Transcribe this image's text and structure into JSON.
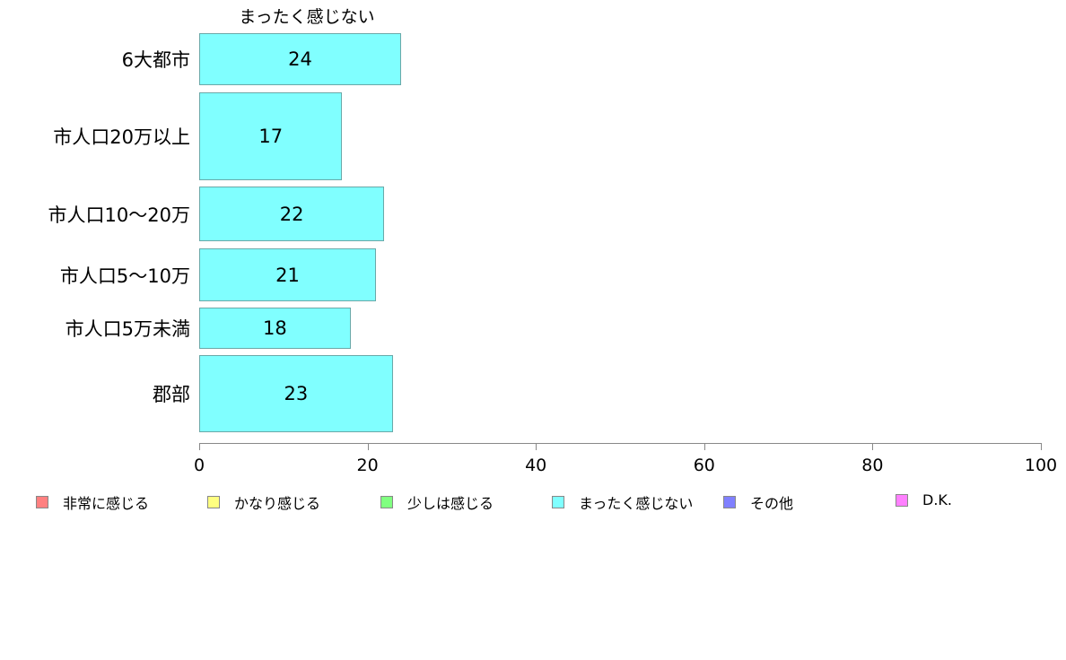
{
  "chart_data": {
    "type": "bar",
    "orientation": "horizontal",
    "title": "まったく感じない",
    "categories": [
      "6大都市",
      "市人口20万以上",
      "市人口10〜20万",
      "市人口5〜10万",
      "市人口5万未満",
      "郡部"
    ],
    "values": [
      24,
      17,
      22,
      21,
      18,
      23
    ],
    "xlim": [
      0,
      100
    ],
    "xticks": [
      0,
      20,
      40,
      60,
      80,
      100
    ],
    "xlabel": "",
    "ylabel": "",
    "bar_color": "#80ffff",
    "legend_position": "bottom",
    "legend": [
      {
        "label": "非常に感じる",
        "color": "#ff8080"
      },
      {
        "label": "かなり感じる",
        "color": "#ffff80"
      },
      {
        "label": "少しは感じる",
        "color": "#80ff80"
      },
      {
        "label": "まったく感じない",
        "color": "#80ffff"
      },
      {
        "label": "その他",
        "color": "#8080ff"
      },
      {
        "label": "D.K.",
        "color": "#ff80ff"
      }
    ]
  }
}
